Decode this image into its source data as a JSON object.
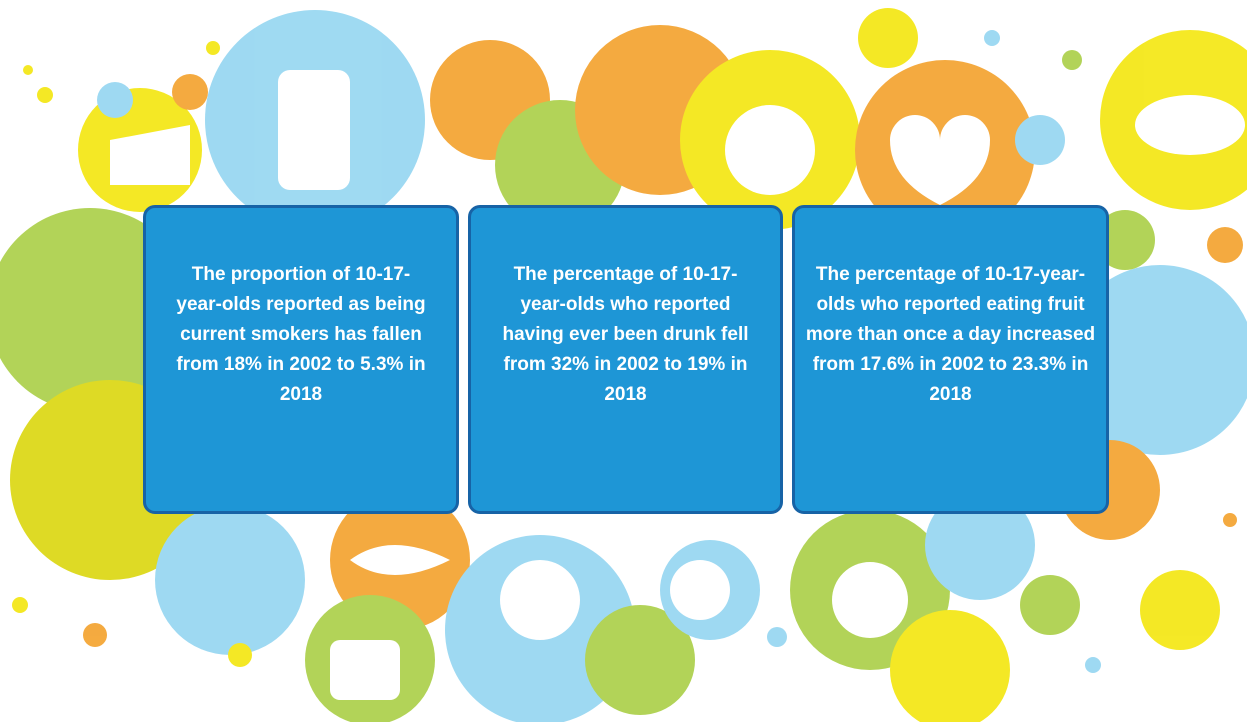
{
  "cards": [
    {
      "text": "The proportion of 10-17-year-olds reported as being current smokers has fallen from 18% in 2002 to 5.3% in 2018"
    },
    {
      "text": "The percentage of 10-17-year-olds who reported having ever been drunk fell from 32% in 2002 to 19% in 2018"
    },
    {
      "text": "The percentage of 10-17-year-olds who reported eating fruit more than once a day increased from 17.6% in 2002 to 23.3% in 2018"
    }
  ]
}
